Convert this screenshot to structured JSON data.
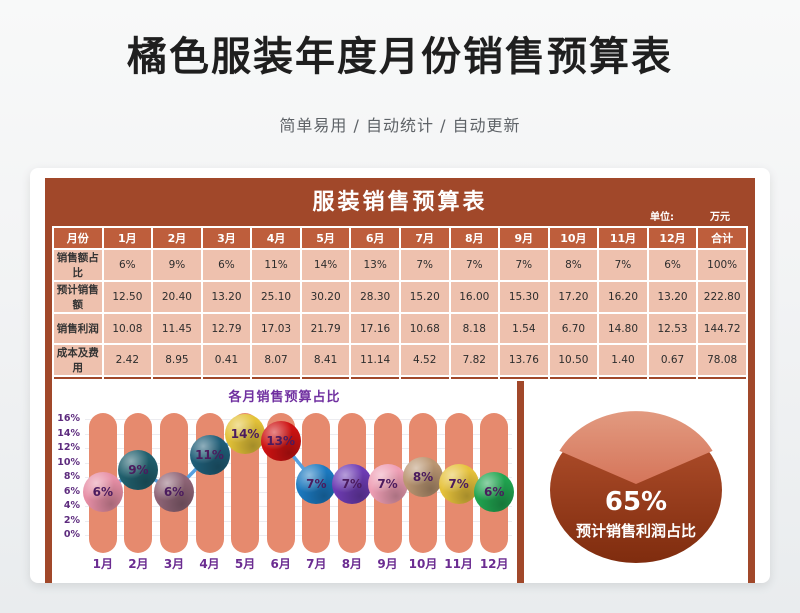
{
  "page": {
    "title": "橘色服装年度月份销售预算表",
    "subtitle": "简单易用 / 自动统计 / 自动更新"
  },
  "table": {
    "title": "服装销售预算表",
    "unit_label": "单位:",
    "unit_value": "万元",
    "header": [
      "月份",
      "1月",
      "2月",
      "3月",
      "4月",
      "5月",
      "6月",
      "7月",
      "8月",
      "9月",
      "10月",
      "11月",
      "12月",
      "合计"
    ],
    "rows": [
      {
        "label": "销售额占比",
        "values": [
          "6%",
          "9%",
          "6%",
          "11%",
          "14%",
          "13%",
          "7%",
          "7%",
          "7%",
          "8%",
          "7%",
          "6%",
          "100%"
        ]
      },
      {
        "label": "预计销售额",
        "values": [
          "12.50",
          "20.40",
          "13.20",
          "25.10",
          "30.20",
          "28.30",
          "15.20",
          "16.00",
          "15.30",
          "17.20",
          "16.20",
          "13.20",
          "222.80"
        ]
      },
      {
        "label": "销售利润",
        "values": [
          "10.08",
          "11.45",
          "12.79",
          "17.03",
          "21.79",
          "17.16",
          "10.68",
          "8.18",
          "1.54",
          "6.70",
          "14.80",
          "12.53",
          "144.72"
        ]
      },
      {
        "label": "成本及费用",
        "values": [
          "2.42",
          "8.95",
          "0.41",
          "8.07",
          "8.41",
          "11.14",
          "4.52",
          "7.82",
          "13.76",
          "10.50",
          "1.40",
          "0.67",
          "78.08"
        ]
      }
    ]
  },
  "chart_data": [
    {
      "type": "line",
      "title": "各月销售预算占比",
      "categories": [
        "1月",
        "2月",
        "3月",
        "4月",
        "5月",
        "6月",
        "7月",
        "8月",
        "9月",
        "10月",
        "11月",
        "12月"
      ],
      "values": [
        6,
        9,
        6,
        11,
        14,
        13,
        7,
        7,
        7,
        8,
        7,
        6
      ],
      "point_labels": [
        "6%",
        "9%",
        "6%",
        "11%",
        "14%",
        "13%",
        "7%",
        "7%",
        "7%",
        "8%",
        "7%",
        "6%"
      ],
      "xlabel": "",
      "ylabel": "",
      "ylim": [
        0,
        16
      ],
      "ytick_step": 2,
      "grid": true,
      "legend": "none",
      "line_color": "#56A0DF",
      "point_colors": [
        "#E78FA6",
        "#20606E",
        "#8F6577",
        "#1F5E78",
        "#E3C238",
        "#CE1212",
        "#1B79C0",
        "#6E3CB4",
        "#EE9EB4",
        "#BA9672",
        "#E6C23B",
        "#20A550"
      ],
      "point_label_color": "#4B1B5E",
      "background_bar_color": "#E68A6E",
      "axis_label_color": "#6B2C91"
    },
    {
      "type": "pie",
      "values": [
        65,
        35
      ],
      "labels": [
        "预计销售利润占比",
        ""
      ],
      "center_label": "65%",
      "caption": "预计销售利润占比",
      "slice_gradients": {
        "main": [
          "#B5522F",
          "#7F2C0E"
        ],
        "wedge": [
          "#E29A80",
          "#D5755A"
        ]
      },
      "text_color": "#FFFFFF"
    }
  ],
  "colors": {
    "frame_rust": "#A1482A",
    "header_orange": "#BE5E3C",
    "cell_pink": "#EEC1AE",
    "pill_salmon": "#E68A6E",
    "line_blue": "#56A0DF",
    "axis_purple": "#6B2C91",
    "chart_title_purple": "#7030A0",
    "card_bg": "#FFFFFF",
    "page_bg": "#EDEFF0",
    "title_text": "#1F1F1F",
    "subtitle_text": "#5F6368"
  }
}
